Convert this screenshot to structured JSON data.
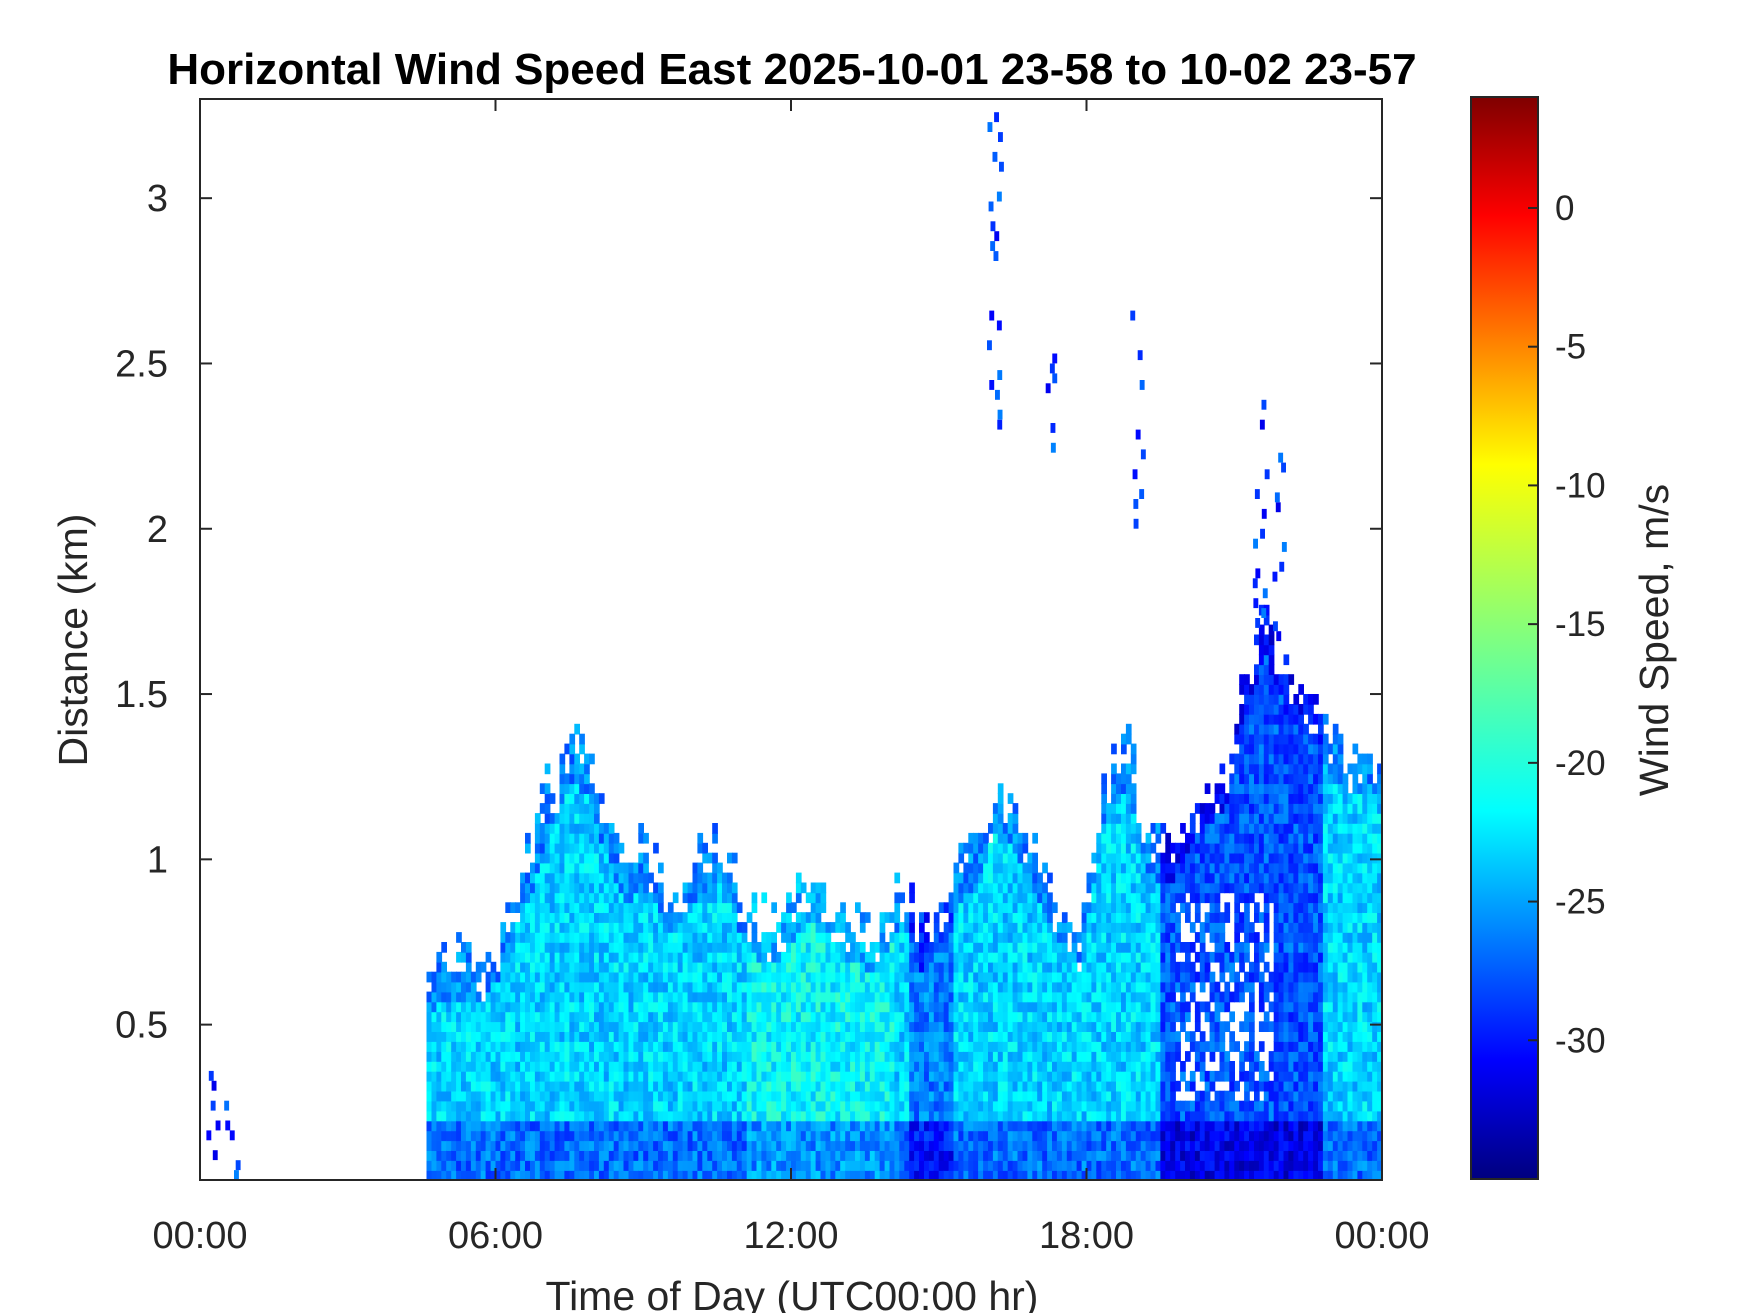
{
  "chart_data": {
    "type": "heatmap",
    "title": "Horizontal Wind Speed East 2025-10-01 23-58 to 10-02 23-57",
    "xlabel": "Time of Day (UTC00:00 hr)",
    "ylabel": "Distance (km)",
    "xlim_hours": [
      0,
      24
    ],
    "ylim_km": [
      0.03,
      3.3
    ],
    "x_ticks": [
      {
        "value": 0,
        "label": "00:00"
      },
      {
        "value": 6,
        "label": "06:00"
      },
      {
        "value": 12,
        "label": "12:00"
      },
      {
        "value": 18,
        "label": "18:00"
      },
      {
        "value": 24,
        "label": "00:00"
      }
    ],
    "y_ticks": [
      {
        "value": 0.5,
        "label": "0.5"
      },
      {
        "value": 1,
        "label": "1"
      },
      {
        "value": 1.5,
        "label": "1.5"
      },
      {
        "value": 2,
        "label": "2"
      },
      {
        "value": 2.5,
        "label": "2.5"
      },
      {
        "value": 3,
        "label": "3"
      }
    ],
    "colorbar": {
      "label": "Wind Speed, m/s",
      "range": [
        -35,
        4
      ],
      "colormap": "jet",
      "ticks": [
        {
          "value": 0,
          "label": "0"
        },
        {
          "value": -5,
          "label": "-5"
        },
        {
          "value": -10,
          "label": "-10"
        },
        {
          "value": -15,
          "label": "-15"
        },
        {
          "value": -20,
          "label": "-20"
        },
        {
          "value": -25,
          "label": "-25"
        },
        {
          "value": -30,
          "label": "-30"
        }
      ]
    },
    "data_envelope": [
      {
        "time_h": 4.55,
        "top_km": 0.62
      },
      {
        "time_h": 4.9,
        "top_km": 0.72
      },
      {
        "time_h": 5.6,
        "top_km": 0.7
      },
      {
        "time_h": 6.0,
        "top_km": 0.78
      },
      {
        "time_h": 6.3,
        "top_km": 0.9
      },
      {
        "time_h": 6.7,
        "top_km": 1.05
      },
      {
        "time_h": 7.0,
        "top_km": 1.22
      },
      {
        "time_h": 7.5,
        "top_km": 1.38
      },
      {
        "time_h": 7.8,
        "top_km": 1.32
      },
      {
        "time_h": 8.2,
        "top_km": 1.15
      },
      {
        "time_h": 8.6,
        "top_km": 1.0
      },
      {
        "time_h": 9.0,
        "top_km": 1.05
      },
      {
        "time_h": 9.5,
        "top_km": 0.9
      },
      {
        "time_h": 10.0,
        "top_km": 1.0
      },
      {
        "time_h": 10.5,
        "top_km": 1.08
      },
      {
        "time_h": 11.0,
        "top_km": 0.88
      },
      {
        "time_h": 11.5,
        "top_km": 0.8
      },
      {
        "time_h": 12.3,
        "top_km": 0.95
      },
      {
        "time_h": 13.0,
        "top_km": 0.85
      },
      {
        "time_h": 13.6,
        "top_km": 0.78
      },
      {
        "time_h": 14.2,
        "top_km": 0.95
      },
      {
        "time_h": 14.6,
        "top_km": 0.8
      },
      {
        "time_h": 15.2,
        "top_km": 0.95
      },
      {
        "time_h": 15.8,
        "top_km": 1.1
      },
      {
        "time_h": 16.2,
        "top_km": 1.25
      },
      {
        "time_h": 16.7,
        "top_km": 1.1
      },
      {
        "time_h": 17.3,
        "top_km": 0.9
      },
      {
        "time_h": 17.8,
        "top_km": 0.8
      },
      {
        "time_h": 18.3,
        "top_km": 1.25
      },
      {
        "time_h": 18.8,
        "top_km": 1.35
      },
      {
        "time_h": 19.2,
        "top_km": 1.1
      },
      {
        "time_h": 19.7,
        "top_km": 1.05
      },
      {
        "time_h": 20.2,
        "top_km": 1.2
      },
      {
        "time_h": 20.8,
        "top_km": 1.3
      },
      {
        "time_h": 21.2,
        "top_km": 1.6
      },
      {
        "time_h": 21.6,
        "top_km": 1.75
      },
      {
        "time_h": 22.1,
        "top_km": 1.55
      },
      {
        "time_h": 22.6,
        "top_km": 1.48
      },
      {
        "time_h": 23.2,
        "top_km": 1.32
      },
      {
        "time_h": 24.0,
        "top_km": 1.35
      }
    ],
    "scattered_returns": [
      {
        "time_h": 16.1,
        "from_km": 2.3,
        "to_km": 3.28
      },
      {
        "time_h": 17.2,
        "from_km": 2.2,
        "to_km": 2.5
      },
      {
        "time_h": 19.0,
        "from_km": 2.0,
        "to_km": 2.65
      },
      {
        "time_h": 21.5,
        "from_km": 1.7,
        "to_km": 2.4
      },
      {
        "time_h": 21.9,
        "from_km": 1.6,
        "to_km": 2.2
      },
      {
        "time_h": 0.2,
        "from_km": 0.03,
        "to_km": 0.35
      },
      {
        "time_h": 0.6,
        "from_km": 0.03,
        "to_km": 0.25
      }
    ]
  }
}
